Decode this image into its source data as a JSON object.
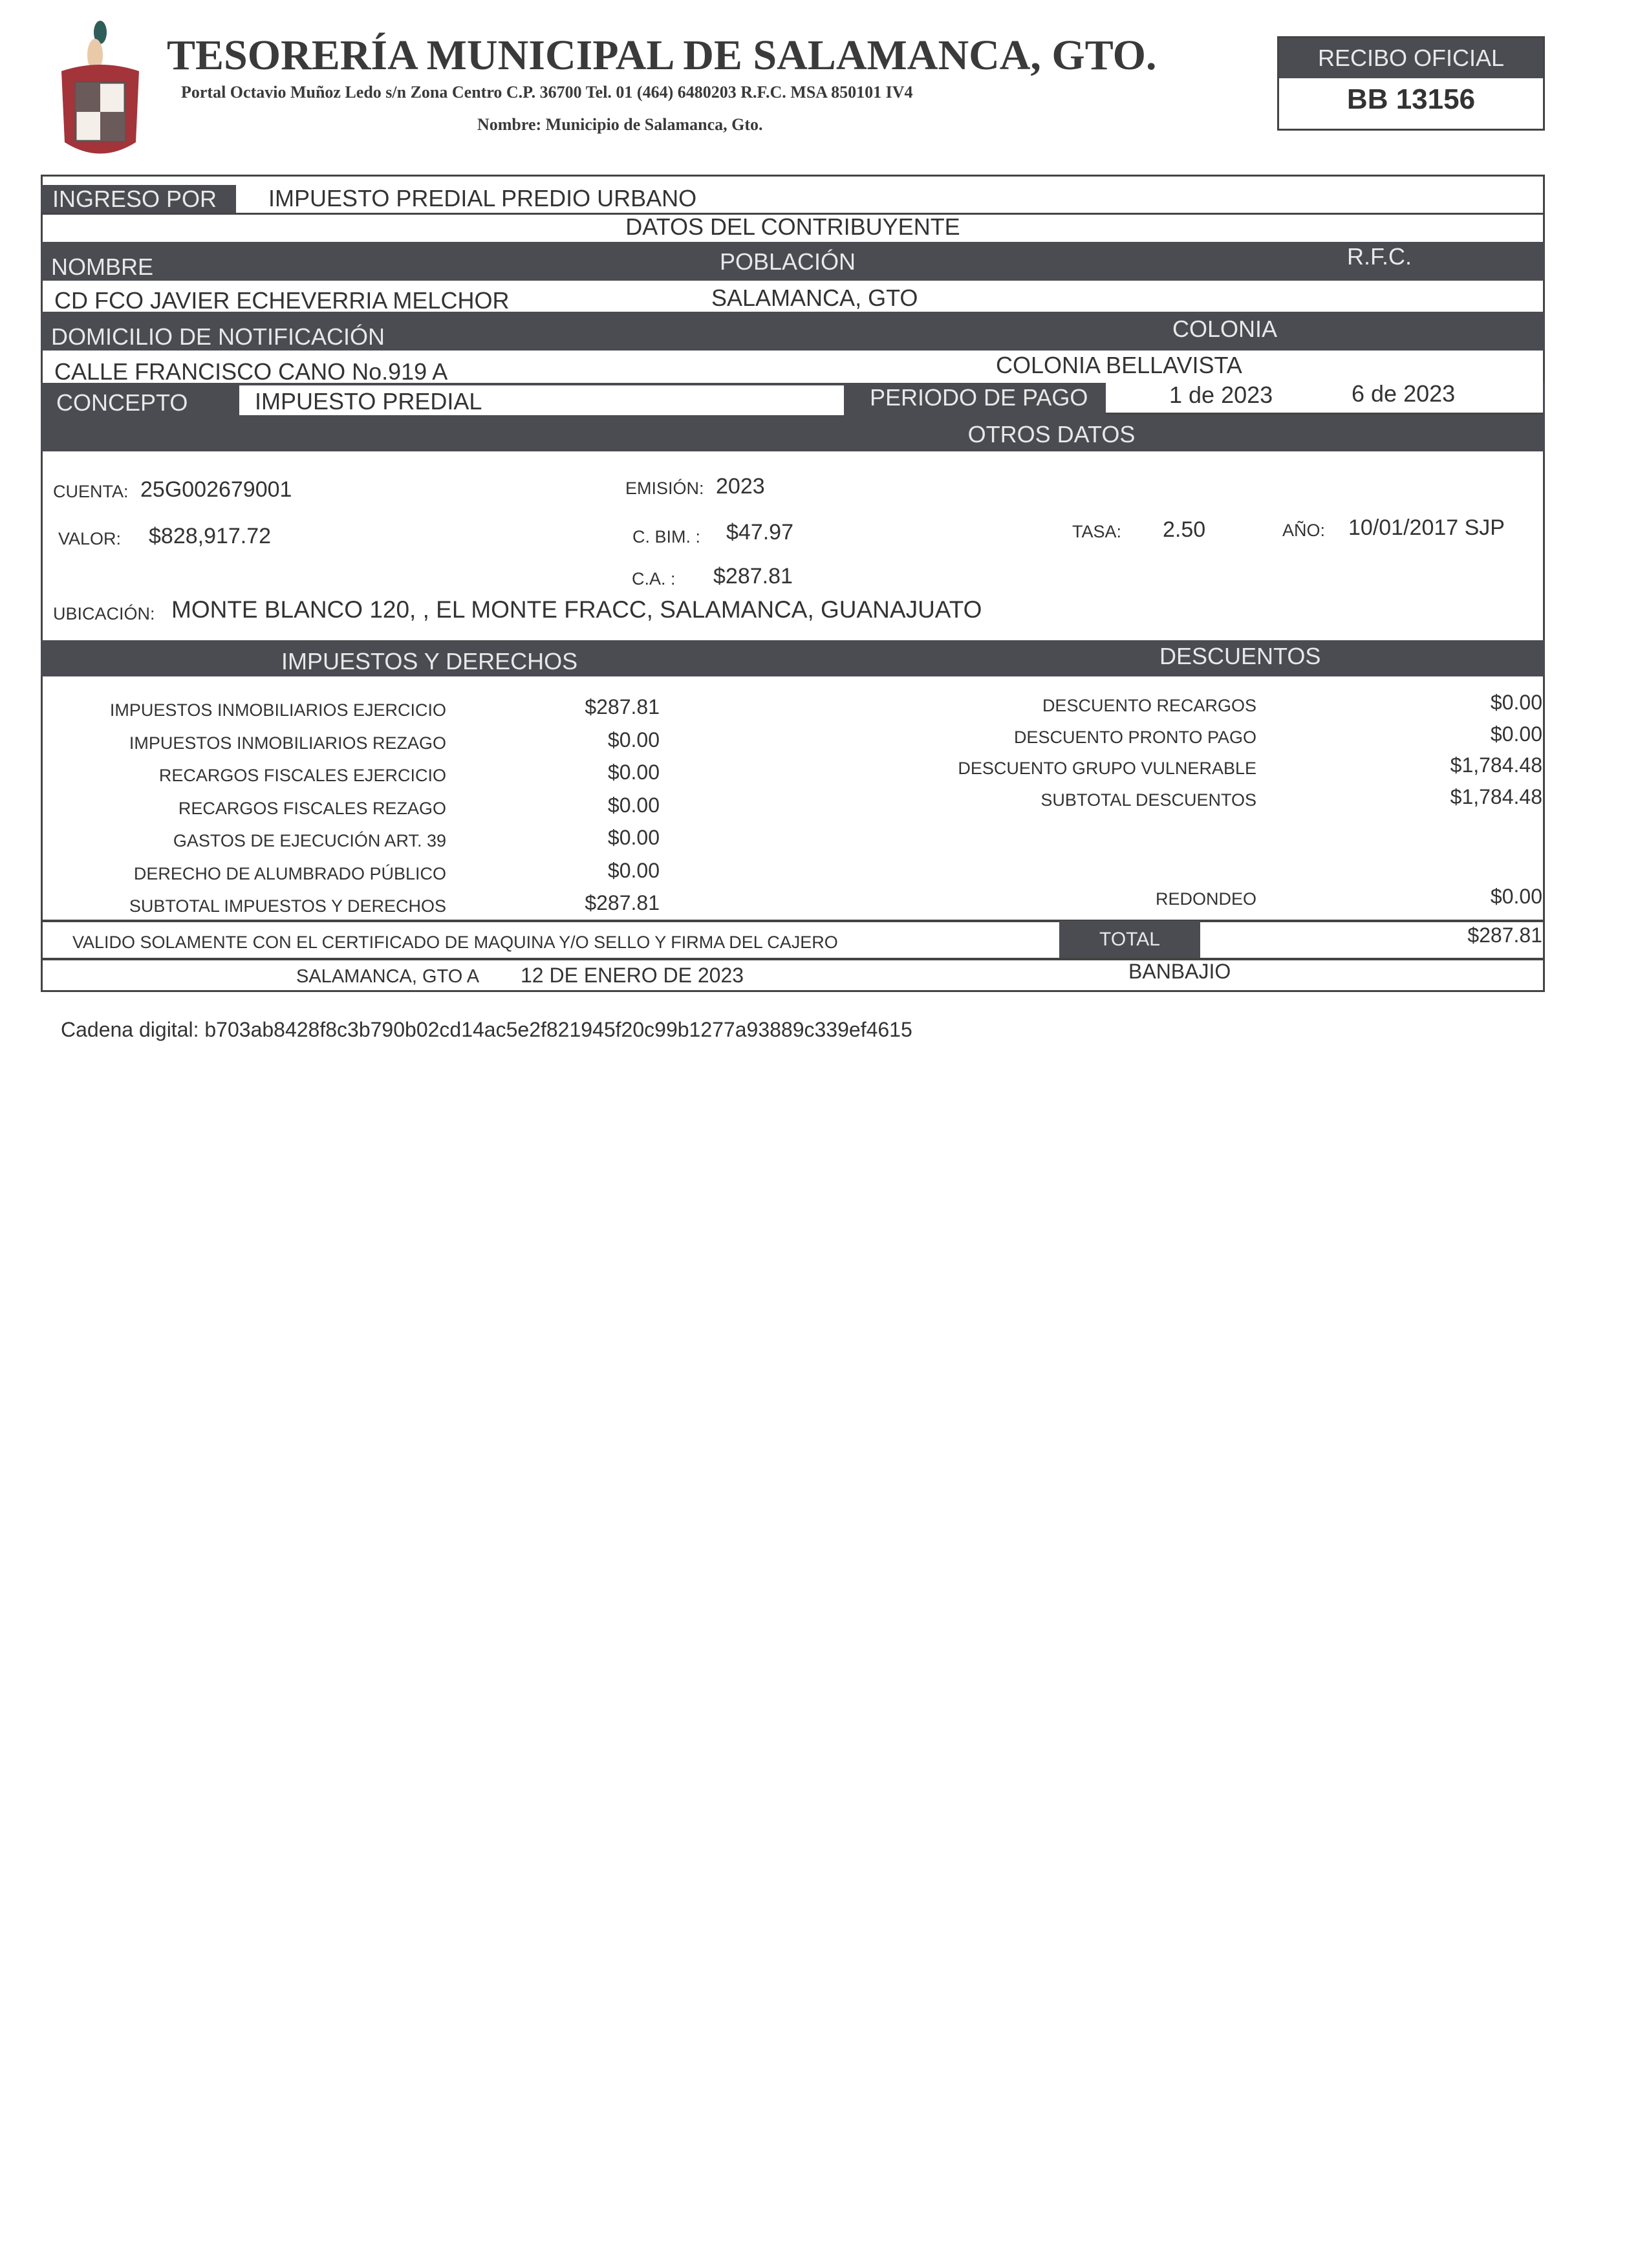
{
  "header": {
    "title": "TESORERÍA MUNICIPAL DE SALAMANCA, GTO.",
    "address": "Portal Octavio Muñoz Ledo s/n Zona Centro C.P. 36700 Tel. 01 (464) 6480203 R.F.C. MSA 850101 IV4",
    "nombre": "Nombre: Municipio de Salamanca, Gto.",
    "logo": "escudo-salamanca"
  },
  "recibo": {
    "label": "RECIBO OFICIAL",
    "folio": "BB 13156"
  },
  "ingreso": {
    "label": "INGRESO POR",
    "value": "IMPUESTO PREDIAL PREDIO URBANO"
  },
  "contribuyente": {
    "section": "DATOS DEL CONTRIBUYENTE",
    "nombre_label": "NOMBRE",
    "poblacion_label": "POBLACIÓN",
    "rfc_label": "R.F.C.",
    "nombre": "CD FCO JAVIER ECHEVERRIA MELCHOR",
    "poblacion": "SALAMANCA, GTO",
    "domicilio_label": "DOMICILIO DE NOTIFICACIÓN",
    "colonia_label": "COLONIA",
    "domicilio": "CALLE FRANCISCO CANO No.919  A",
    "colonia": "COLONIA BELLAVISTA"
  },
  "concepto": {
    "label": "CONCEPTO",
    "value": "IMPUESTO PREDIAL",
    "periodo_label": "PERIODO DE PAGO",
    "periodo_inicio": "1 de 2023",
    "periodo_fin": "6 de 2023"
  },
  "otros": {
    "section": "OTROS DATOS",
    "cuenta_label": "CUENTA:",
    "cuenta": "25G002679001",
    "emision_label": "EMISIÓN:",
    "emision": "2023",
    "valor_label": "VALOR:",
    "valor": "$828,917.72",
    "cbim_label": "C. BIM. :",
    "cbim": "$47.97",
    "tasa_label": "TASA:",
    "tasa": "2.50",
    "anio_label": "AÑO:",
    "anio": "10/01/2017 SJP",
    "ca_label": "C.A. :",
    "ca": "$287.81",
    "ubicacion_label": "UBICACIÓN:",
    "ubicacion": "MONTE BLANCO 120, , EL MONTE FRACC, SALAMANCA, GUANAJUATO"
  },
  "impuestos": {
    "section": "IMPUESTOS Y DERECHOS",
    "items": [
      {
        "label": "IMPUESTOS INMOBILIARIOS EJERCICIO",
        "value": "$287.81"
      },
      {
        "label": "IMPUESTOS INMOBILIARIOS REZAGO",
        "value": "$0.00"
      },
      {
        "label": "RECARGOS FISCALES EJERCICIO",
        "value": "$0.00"
      },
      {
        "label": "RECARGOS FISCALES REZAGO",
        "value": "$0.00"
      },
      {
        "label": "GASTOS DE EJECUCIÓN ART. 39",
        "value": "$0.00"
      },
      {
        "label": "DERECHO DE ALUMBRADO PÚBLICO",
        "value": "$0.00"
      },
      {
        "label": "SUBTOTAL IMPUESTOS Y DERECHOS",
        "value": "$287.81"
      }
    ]
  },
  "descuentos": {
    "section": "DESCUENTOS",
    "items": [
      {
        "label": "DESCUENTO RECARGOS",
        "value": "$0.00"
      },
      {
        "label": "DESCUENTO PRONTO PAGO",
        "value": "$0.00"
      },
      {
        "label": "DESCUENTO GRUPO VULNERABLE",
        "value": "$1,784.48"
      },
      {
        "label": "SUBTOTAL DESCUENTOS",
        "value": "$1,784.48"
      }
    ],
    "redondeo_label": "REDONDEO",
    "redondeo": "$0.00"
  },
  "footer": {
    "validez": "VALIDO SOLAMENTE CON EL CERTIFICADO DE MAQUINA Y/O SELLO Y FIRMA DEL CAJERO",
    "total_label": "TOTAL",
    "total": "$287.81",
    "lugar": "SALAMANCA, GTO A",
    "fecha": "12 DE ENERO DE 2023",
    "banco": "BANBAJIO"
  },
  "cadena": "Cadena digital: b703ab8428f8c3b790b02cd14ac5e2f821945f20c99b1277a93889c339ef4615"
}
